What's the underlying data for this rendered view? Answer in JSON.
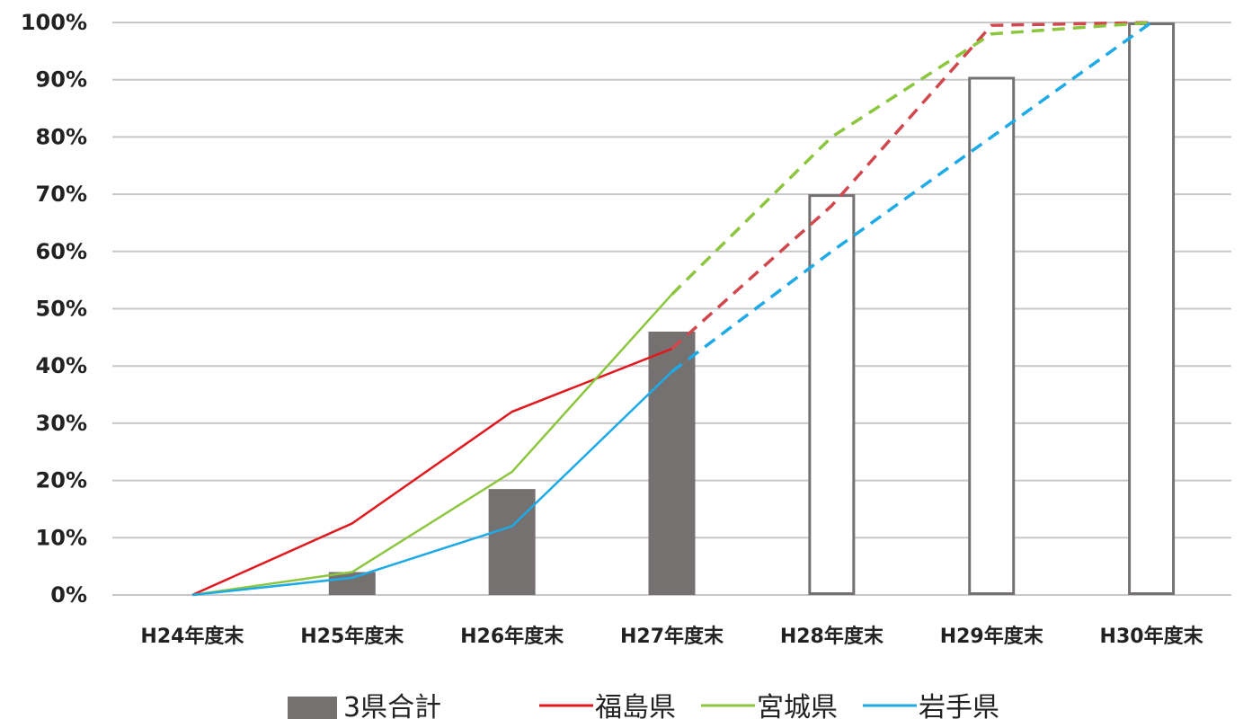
{
  "chart_data": {
    "type": "bar",
    "categories": [
      "H24年度末",
      "H25年度末",
      "H26年度末",
      "H27年度末",
      "H28年度末",
      "H29年度末",
      "H30年度末"
    ],
    "ylim": [
      0,
      100
    ],
    "yticks": [
      "0%",
      "10%",
      "20%",
      "30%",
      "40%",
      "50%",
      "60%",
      "70%",
      "80%",
      "90%",
      "100%"
    ],
    "grid": true,
    "legend_position": "bottom",
    "bar_series": {
      "name": "3県合計",
      "values": [
        0,
        4,
        18.5,
        46,
        70,
        90.5,
        100
      ],
      "actual_until_index": 3,
      "actual_color": "#767171",
      "planned_style": "outline"
    },
    "line_series": [
      {
        "name": "福島県",
        "color": "#e0191f",
        "planned_color": "#d0484e",
        "values": [
          0,
          12.5,
          32,
          43,
          68,
          99.5,
          100
        ],
        "actual_until_index": 3
      },
      {
        "name": "宮城県",
        "color": "#8cc63f",
        "planned_color": "#8cc63f",
        "values": [
          0,
          4,
          21.5,
          52.5,
          80,
          98,
          100
        ],
        "actual_until_index": 3
      },
      {
        "name": "岩手県",
        "color": "#1eaae6",
        "planned_color": "#1eaae6",
        "values": [
          0,
          3,
          12,
          39,
          60,
          80,
          100
        ],
        "actual_until_index": 3
      }
    ]
  }
}
